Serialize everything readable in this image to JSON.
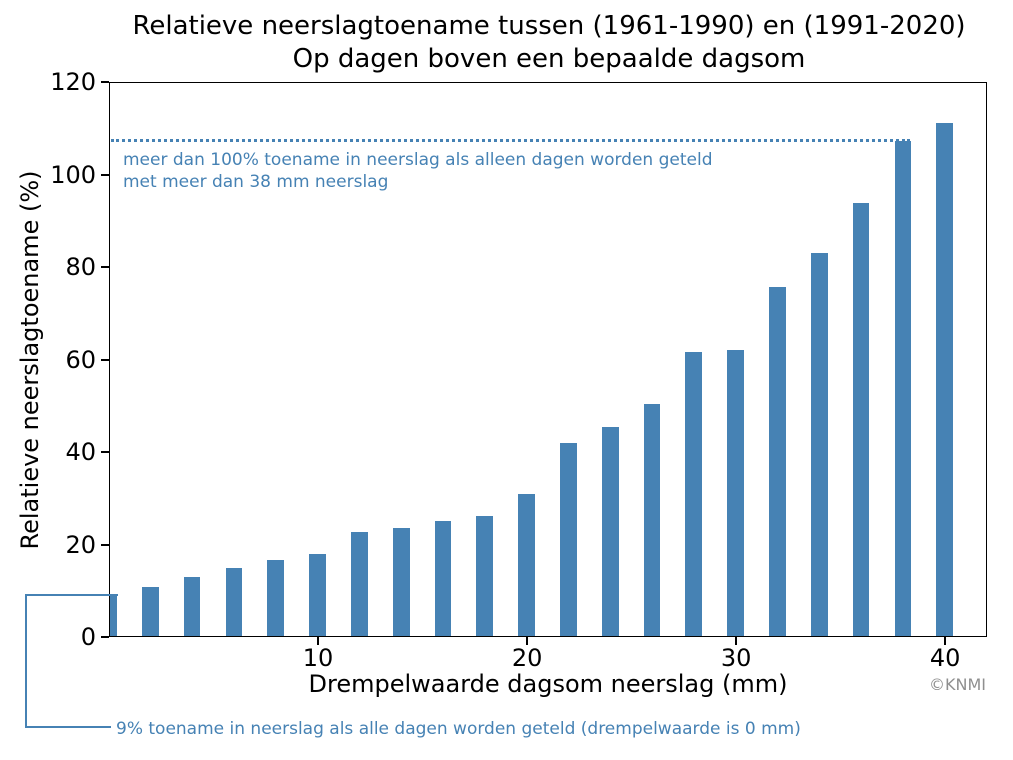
{
  "title": {
    "line1": "Relatieve neerslagtoename tussen (1961-1990) en (1991-2020)",
    "line2": "Op dagen boven een bepaalde dagsom"
  },
  "axes": {
    "ylabel": "Relatieve neerslagtoename (%)",
    "xlabel": "Drempelwaarde dagsom neerslag (mm)"
  },
  "annotations": {
    "threshold": {
      "line1": "meer dan 100% toename in neerslag als alleen dagen worden geteld",
      "line2": "met meer dan 38 mm neerslag",
      "line_value": 107.2,
      "line_end_mm": 38.2
    },
    "callout": {
      "text": "9% toename in neerslag als alle dagen worden geteld (drempelwaarde is 0 mm)",
      "value": 9
    }
  },
  "credit": "©KNMI",
  "colors": {
    "bar": "#4682b4",
    "annotation": "#4682b4",
    "axis": "#000000",
    "credit": "#8f8f8f",
    "background": "#ffffff"
  },
  "chart_data": {
    "type": "bar",
    "title": "Relatieve neerslagtoename tussen (1961-1990) en (1991-2020) Op dagen boven een bepaalde dagsom",
    "xlabel": "Drempelwaarde dagsom neerslag (mm)",
    "ylabel": "Relatieve neerslagtoename (%)",
    "x": [
      0,
      2,
      4,
      6,
      8,
      10,
      12,
      14,
      16,
      18,
      20,
      22,
      24,
      26,
      28,
      30,
      32,
      34,
      36,
      38,
      40
    ],
    "values": [
      9,
      10.5,
      12.7,
      14.6,
      16.4,
      17.8,
      22.4,
      23.3,
      24.8,
      26,
      30.8,
      41.8,
      45.2,
      50.2,
      61.4,
      61.8,
      75.4,
      82.8,
      93.7,
      107,
      111
    ],
    "xticks": [
      10,
      20,
      30,
      40
    ],
    "yticks": [
      0,
      20,
      40,
      60,
      80,
      100,
      120
    ],
    "xlim": [
      0,
      42
    ],
    "ylim": [
      0,
      120
    ],
    "grid": false,
    "legend": "none",
    "bar_width_mm": 0.8
  }
}
